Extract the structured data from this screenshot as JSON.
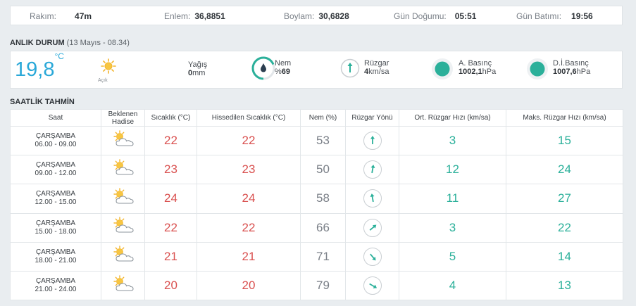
{
  "topbar": {
    "rakim_label": "Rakım:",
    "rakim_value": "47m",
    "enlem_label": "Enlem:",
    "enlem_value": "36,8851",
    "boylam_label": "Boylam:",
    "boylam_value": "30,6828",
    "gundogumu_label": "Gün Doğumu:",
    "gundogumu_value": "05:51",
    "gunbatimi_label": "Gün Batımı:",
    "gunbatimi_value": "19:56"
  },
  "current": {
    "title": "ANLIK DURUM",
    "subtitle": "(13 Mayıs - 08.34)",
    "temp": "19,8",
    "temp_unit": "°C",
    "condition": "Açık",
    "condition_icon": "sun-icon",
    "yagis_label": "Yağış",
    "yagis_value": "0",
    "yagis_unit": "mm",
    "nem_label": "Nem",
    "nem_prefix": "%",
    "nem_value": "69",
    "nem_percent": 69,
    "ruzgar_label": "Rüzgar",
    "ruzgar_value": "4",
    "ruzgar_unit": "km/sa",
    "abasinc_label": "A. Basınç",
    "abasinc_value": "1002,1",
    "abasinc_unit": "hPa",
    "dibasinc_label": "D.İ.Basınç",
    "dibasinc_value": "1007,6",
    "dibasinc_unit": "hPa",
    "colors": {
      "temp": "#29a8d8",
      "accent": "#2bb09a"
    }
  },
  "hourly": {
    "title": "SAATLİK TAHMİN",
    "headers": {
      "saat": "Saat",
      "hadise_1": "Beklenen",
      "hadise_2": "Hadise",
      "sicaklik": "Sıcaklık (°C)",
      "hissedilen": "Hissedilen Sıcaklık (°C)",
      "nem": "Nem (%)",
      "yon": "Rüzgar Yönü",
      "ort": "Ort. Rüzgar Hızı (km/sa)",
      "maks": "Maks. Rüzgar Hızı (km/sa)"
    },
    "rows": [
      {
        "day": "ÇARŞAMBA",
        "time": "06.00 - 09.00",
        "icon": "partly-cloudy-icon",
        "temp": "22",
        "feels": "22",
        "humidity": "53",
        "wind_dir_deg": 0,
        "wind_avg": "3",
        "wind_max": "15"
      },
      {
        "day": "ÇARŞAMBA",
        "time": "09.00 - 12.00",
        "icon": "partly-cloudy-icon",
        "temp": "23",
        "feels": "23",
        "humidity": "50",
        "wind_dir_deg": 10,
        "wind_avg": "12",
        "wind_max": "24"
      },
      {
        "day": "ÇARŞAMBA",
        "time": "12.00 - 15.00",
        "icon": "partly-cloudy-icon",
        "temp": "24",
        "feels": "24",
        "humidity": "58",
        "wind_dir_deg": -10,
        "wind_avg": "11",
        "wind_max": "27"
      },
      {
        "day": "ÇARŞAMBA",
        "time": "15.00 - 18.00",
        "icon": "partly-cloudy-icon",
        "temp": "22",
        "feels": "22",
        "humidity": "66",
        "wind_dir_deg": 50,
        "wind_avg": "3",
        "wind_max": "22"
      },
      {
        "day": "ÇARŞAMBA",
        "time": "18.00 - 21.00",
        "icon": "partly-cloudy-icon",
        "temp": "21",
        "feels": "21",
        "humidity": "71",
        "wind_dir_deg": 140,
        "wind_avg": "5",
        "wind_max": "14"
      },
      {
        "day": "ÇARŞAMBA",
        "time": "21.00 - 24.00",
        "icon": "partly-cloudy-icon",
        "temp": "20",
        "feels": "20",
        "humidity": "79",
        "wind_dir_deg": 120,
        "wind_avg": "4",
        "wind_max": "13"
      }
    ]
  }
}
